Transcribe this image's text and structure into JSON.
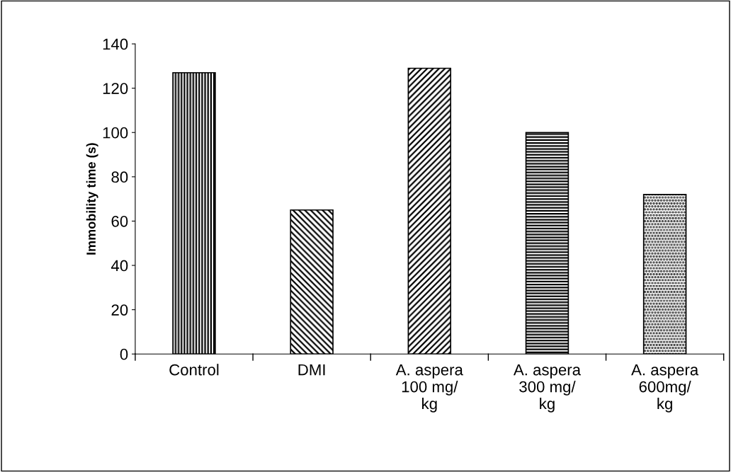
{
  "chart_data": {
    "type": "bar",
    "ylabel": "Immobility time (s)",
    "categories": [
      "Control",
      "DMI",
      "A. aspera\n100 mg/\nkg",
      "A. aspera\n300 mg/\nkg",
      "A. aspera\n600mg/\nkg"
    ],
    "values": [
      127,
      65,
      129,
      100,
      72
    ],
    "color": "#000000",
    "ylim": [
      0,
      140
    ],
    "yticks": [
      0,
      20,
      40,
      60,
      80,
      100,
      120,
      140
    ],
    "grid": false,
    "legend": false
  }
}
